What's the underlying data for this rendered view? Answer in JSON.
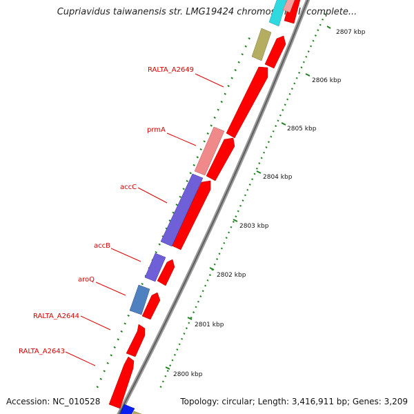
{
  "title": "Cupriavidus taiwanensis str. LMG19424 chromosome I, complete...",
  "footer": {
    "accession": "Accession: NC_010528",
    "topology": "Topology: circular; Length: 3,416,911 bp; Genes: 3,209"
  },
  "ruler": {
    "ticks": [
      {
        "label": "2807 kbp"
      },
      {
        "label": "2806 kbp"
      },
      {
        "label": "2805 kbp"
      },
      {
        "label": "2804 kbp"
      },
      {
        "label": "2803 kbp"
      },
      {
        "label": "2802 kbp"
      },
      {
        "label": "2801 kbp"
      },
      {
        "label": "2800 kbp"
      }
    ]
  },
  "genes": [
    {
      "label": "RALTA_A2649"
    },
    {
      "label": "prmA"
    },
    {
      "label": "accC"
    },
    {
      "label": "accB"
    },
    {
      "label": "aroQ"
    },
    {
      "label": "RALTA_A2644"
    },
    {
      "label": "RALTA_A2643"
    }
  ],
  "colors": {
    "label": "#d40000",
    "leader": "#e00000",
    "gene_red": "#ff0000",
    "gene_pink": "#f08a8a",
    "gene_purple": "#7060d8",
    "gene_steelblue": "#4f80c0",
    "gene_olive": "#b5ae60",
    "gene_cyan": "#30d8e0",
    "gene_blue": "#0a20f0",
    "tick_green": "#208020",
    "backbone": "#8c8c8c"
  }
}
